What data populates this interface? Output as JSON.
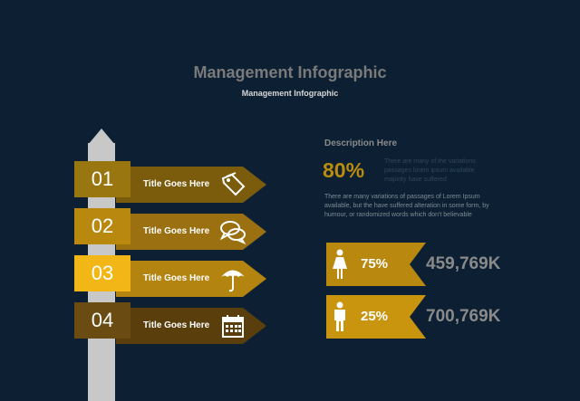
{
  "header": {
    "title": "Management Infographic",
    "subtitle": "Management Infographic"
  },
  "signs": [
    {
      "number": "01",
      "title": "Title Goes Here",
      "icon": "tag-icon",
      "box_color": "#9a7611",
      "arrow_color": "#7b5c0c"
    },
    {
      "number": "02",
      "title": "Title Goes Here",
      "icon": "chat-bubbles-icon",
      "box_color": "#b8880f",
      "arrow_color": "#9a7010"
    },
    {
      "number": "03",
      "title": "Title Goes Here",
      "icon": "umbrella-icon",
      "box_color": "#f2b616",
      "arrow_color": "#b38410"
    },
    {
      "number": "04",
      "title": "Title Goes Here",
      "icon": "calendar-icon",
      "box_color": "#6a4c12",
      "arrow_color": "#5a3f0d"
    }
  ],
  "description": {
    "heading": "Description Here",
    "percent": "80%",
    "small_text": "There are many of the variations passages lorem ipsum available majority have suffered",
    "paragraph": "There are many variations of passages  of Lorem Ipsum available, but the have suffered alteration in some  form, by humour,  or randomized words  which  don't believable"
  },
  "stats": [
    {
      "icon": "female-person-icon",
      "percent": "75%",
      "value": "459,769K",
      "color": "#b8880f"
    },
    {
      "icon": "male-person-icon",
      "percent": "25%",
      "value": "700,769K",
      "color": "#c9950f"
    }
  ]
}
